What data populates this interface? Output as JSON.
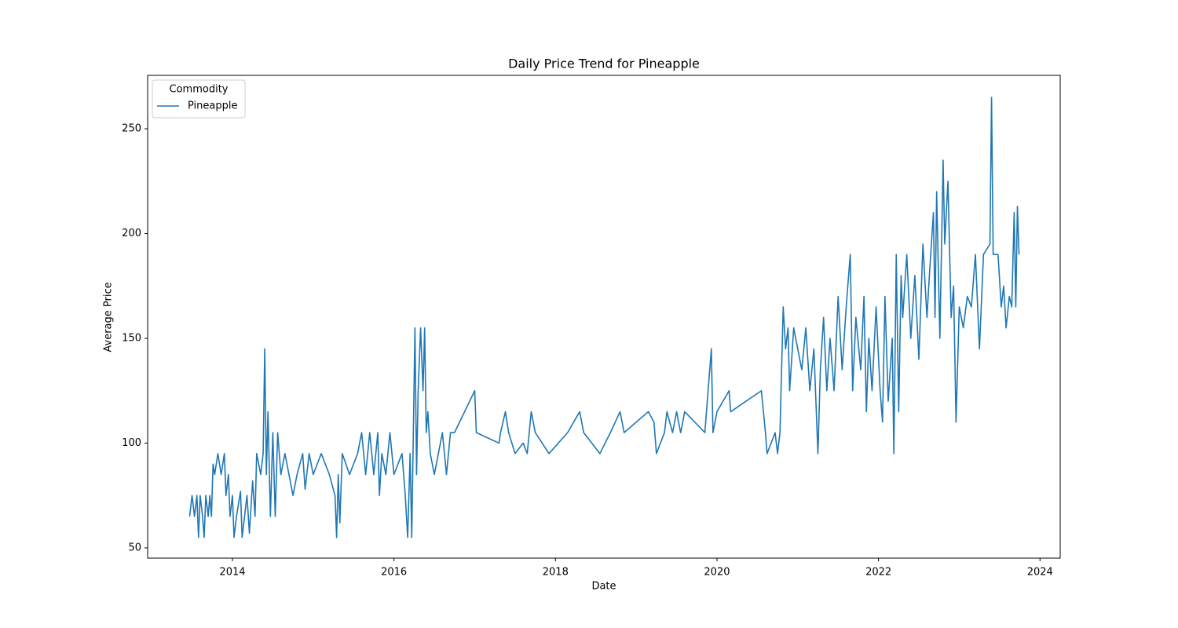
{
  "chart_data": {
    "type": "line",
    "title": "Daily Price Trend for Pineapple",
    "xlabel": "Date",
    "ylabel": "Average Price",
    "legend_title": "Commodity",
    "legend": "upper left",
    "grid": false,
    "xlim": [
      2012.95,
      2024.25
    ],
    "xticks": [
      2014,
      2016,
      2018,
      2020,
      2022,
      2024
    ],
    "ylim": [
      45.1,
      275.5
    ],
    "yticks": [
      50,
      100,
      150,
      200,
      250
    ],
    "x": [
      2013.47,
      2013.5,
      2013.53,
      2013.56,
      2013.58,
      2013.6,
      2013.63,
      2013.65,
      2013.67,
      2013.7,
      2013.72,
      2013.74,
      2013.76,
      2013.78,
      2013.82,
      2013.86,
      2013.9,
      2013.92,
      2013.95,
      2013.97,
      2014.0,
      2014.02,
      2014.05,
      2014.1,
      2014.12,
      2014.15,
      2014.18,
      2014.21,
      2014.25,
      2014.28,
      2014.3,
      2014.35,
      2014.38,
      2014.4,
      2014.42,
      2014.44,
      2014.47,
      2014.5,
      2014.53,
      2014.56,
      2014.6,
      2014.65,
      2014.7,
      2014.75,
      2014.8,
      2014.87,
      2014.9,
      2014.95,
      2015.0,
      2015.1,
      2015.2,
      2015.27,
      2015.29,
      2015.31,
      2015.33,
      2015.36,
      2015.45,
      2015.55,
      2015.6,
      2015.65,
      2015.7,
      2015.75,
      2015.8,
      2015.82,
      2015.85,
      2015.9,
      2015.95,
      2016.0,
      2016.1,
      2016.14,
      2016.17,
      2016.2,
      2016.22,
      2016.24,
      2016.26,
      2016.28,
      2016.3,
      2016.33,
      2016.36,
      2016.38,
      2016.4,
      2016.42,
      2016.45,
      2016.5,
      2016.55,
      2016.6,
      2016.65,
      2016.7,
      2016.75,
      2017.0,
      2017.02,
      2017.3,
      2017.32,
      2017.38,
      2017.42,
      2017.5,
      2017.6,
      2017.65,
      2017.7,
      2017.75,
      2017.92,
      2018.15,
      2018.3,
      2018.35,
      2018.55,
      2018.68,
      2018.8,
      2018.85,
      2019.15,
      2019.22,
      2019.25,
      2019.35,
      2019.38,
      2019.45,
      2019.5,
      2019.55,
      2019.6,
      2019.85,
      2019.93,
      2019.95,
      2020.0,
      2020.15,
      2020.17,
      2020.55,
      2020.6,
      2020.62,
      2020.72,
      2020.75,
      2020.78,
      2020.82,
      2020.85,
      2020.88,
      2020.9,
      2020.95,
      2021.05,
      2021.1,
      2021.15,
      2021.2,
      2021.25,
      2021.28,
      2021.32,
      2021.36,
      2021.4,
      2021.45,
      2021.5,
      2021.55,
      2021.6,
      2021.65,
      2021.68,
      2021.72,
      2021.78,
      2021.82,
      2021.85,
      2021.88,
      2021.92,
      2021.97,
      2022.02,
      2022.05,
      2022.08,
      2022.12,
      2022.17,
      2022.19,
      2022.22,
      2022.25,
      2022.28,
      2022.3,
      2022.35,
      2022.4,
      2022.45,
      2022.5,
      2022.55,
      2022.6,
      2022.63,
      2022.68,
      2022.7,
      2022.72,
      2022.76,
      2022.8,
      2022.82,
      2022.86,
      2022.9,
      2022.93,
      2022.96,
      2023.0,
      2023.05,
      2023.1,
      2023.15,
      2023.2,
      2023.25,
      2023.3,
      2023.38,
      2023.4,
      2023.42,
      2023.48,
      2023.52,
      2023.55,
      2023.58,
      2023.62,
      2023.65,
      2023.68,
      2023.7,
      2023.72,
      2023.74
    ],
    "series": [
      {
        "name": "Pineapple",
        "color": "#1f77b4",
        "values": [
          65,
          75,
          65,
          75,
          55,
          75,
          65,
          55,
          75,
          65,
          75,
          65,
          90,
          85,
          95,
          85,
          95,
          75,
          85,
          65,
          75,
          55,
          65,
          77,
          55,
          65,
          75,
          57,
          82,
          65,
          95,
          85,
          95,
          145,
          85,
          115,
          65,
          105,
          65,
          105,
          85,
          95,
          85,
          75,
          85,
          95,
          78,
          95,
          85,
          95,
          85,
          75,
          55,
          85,
          62,
          95,
          85,
          95,
          105,
          85,
          105,
          85,
          105,
          75,
          95,
          85,
          105,
          85,
          95,
          75,
          55,
          95,
          55,
          105,
          155,
          85,
          125,
          155,
          125,
          155,
          105,
          115,
          95,
          85,
          95,
          105,
          85,
          105,
          105,
          125,
          105,
          100,
          105,
          115,
          105,
          95,
          100,
          95,
          115,
          105,
          95,
          105,
          115,
          105,
          95,
          105,
          115,
          105,
          115,
          110,
          95,
          105,
          115,
          105,
          115,
          105,
          115,
          105,
          145,
          105,
          115,
          125,
          115,
          125,
          105,
          95,
          105,
          95,
          105,
          165,
          145,
          155,
          125,
          155,
          135,
          155,
          125,
          145,
          95,
          135,
          160,
          125,
          150,
          125,
          170,
          135,
          165,
          190,
          125,
          160,
          135,
          170,
          115,
          150,
          125,
          165,
          125,
          110,
          170,
          120,
          150,
          95,
          190,
          115,
          180,
          160,
          190,
          150,
          180,
          140,
          195,
          160,
          180,
          210,
          160,
          220,
          150,
          235,
          195,
          225,
          160,
          175,
          110,
          165,
          155,
          170,
          165,
          190,
          145,
          190,
          195,
          265,
          190,
          190,
          165,
          175,
          155,
          170,
          165,
          210,
          165,
          213,
          190
        ]
      }
    ]
  }
}
